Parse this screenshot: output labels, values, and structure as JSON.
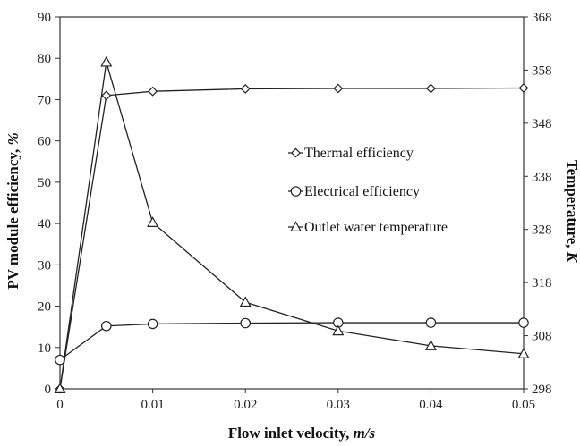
{
  "chart_data": {
    "type": "line",
    "x": [
      0,
      0.005,
      0.01,
      0.02,
      0.03,
      0.04,
      0.05
    ],
    "xlabel": {
      "text": "Flow inlet velocity, ",
      "unit": "m/s"
    },
    "ylabel": {
      "text": "PV module efficiency, ",
      "unit": "%"
    },
    "y2label": {
      "text": "Temperature, ",
      "unit": "K"
    },
    "xlim": [
      0,
      0.05
    ],
    "ylim": [
      0,
      90
    ],
    "y2lim": [
      298,
      368
    ],
    "xticks": [
      "0",
      "0.01",
      "0.02",
      "0.03",
      "0.04",
      "0.05"
    ],
    "xtick_values": [
      0,
      0.01,
      0.02,
      0.03,
      0.04,
      0.05
    ],
    "yticks": [
      "0",
      "10",
      "20",
      "30",
      "40",
      "50",
      "60",
      "70",
      "80",
      "90"
    ],
    "y2ticks": [
      "298",
      "308",
      "318",
      "328",
      "338",
      "348",
      "358",
      "368"
    ],
    "grid": false,
    "legend_position": "center-right",
    "series": [
      {
        "name": "Thermal efficiency",
        "marker": "diamond",
        "axis": "left",
        "values": [
          0,
          71,
          72,
          72.6,
          72.7,
          72.7,
          72.8
        ]
      },
      {
        "name": "Electrical efficiency",
        "marker": "circle",
        "axis": "left",
        "values": [
          7,
          15.2,
          15.7,
          15.9,
          16,
          16,
          16
        ]
      },
      {
        "name": "Outlet water temperature",
        "marker": "triangle",
        "axis": "right",
        "values": [
          298,
          359.5,
          329.3,
          314.3,
          308.9,
          306.1,
          304.6
        ]
      }
    ]
  }
}
